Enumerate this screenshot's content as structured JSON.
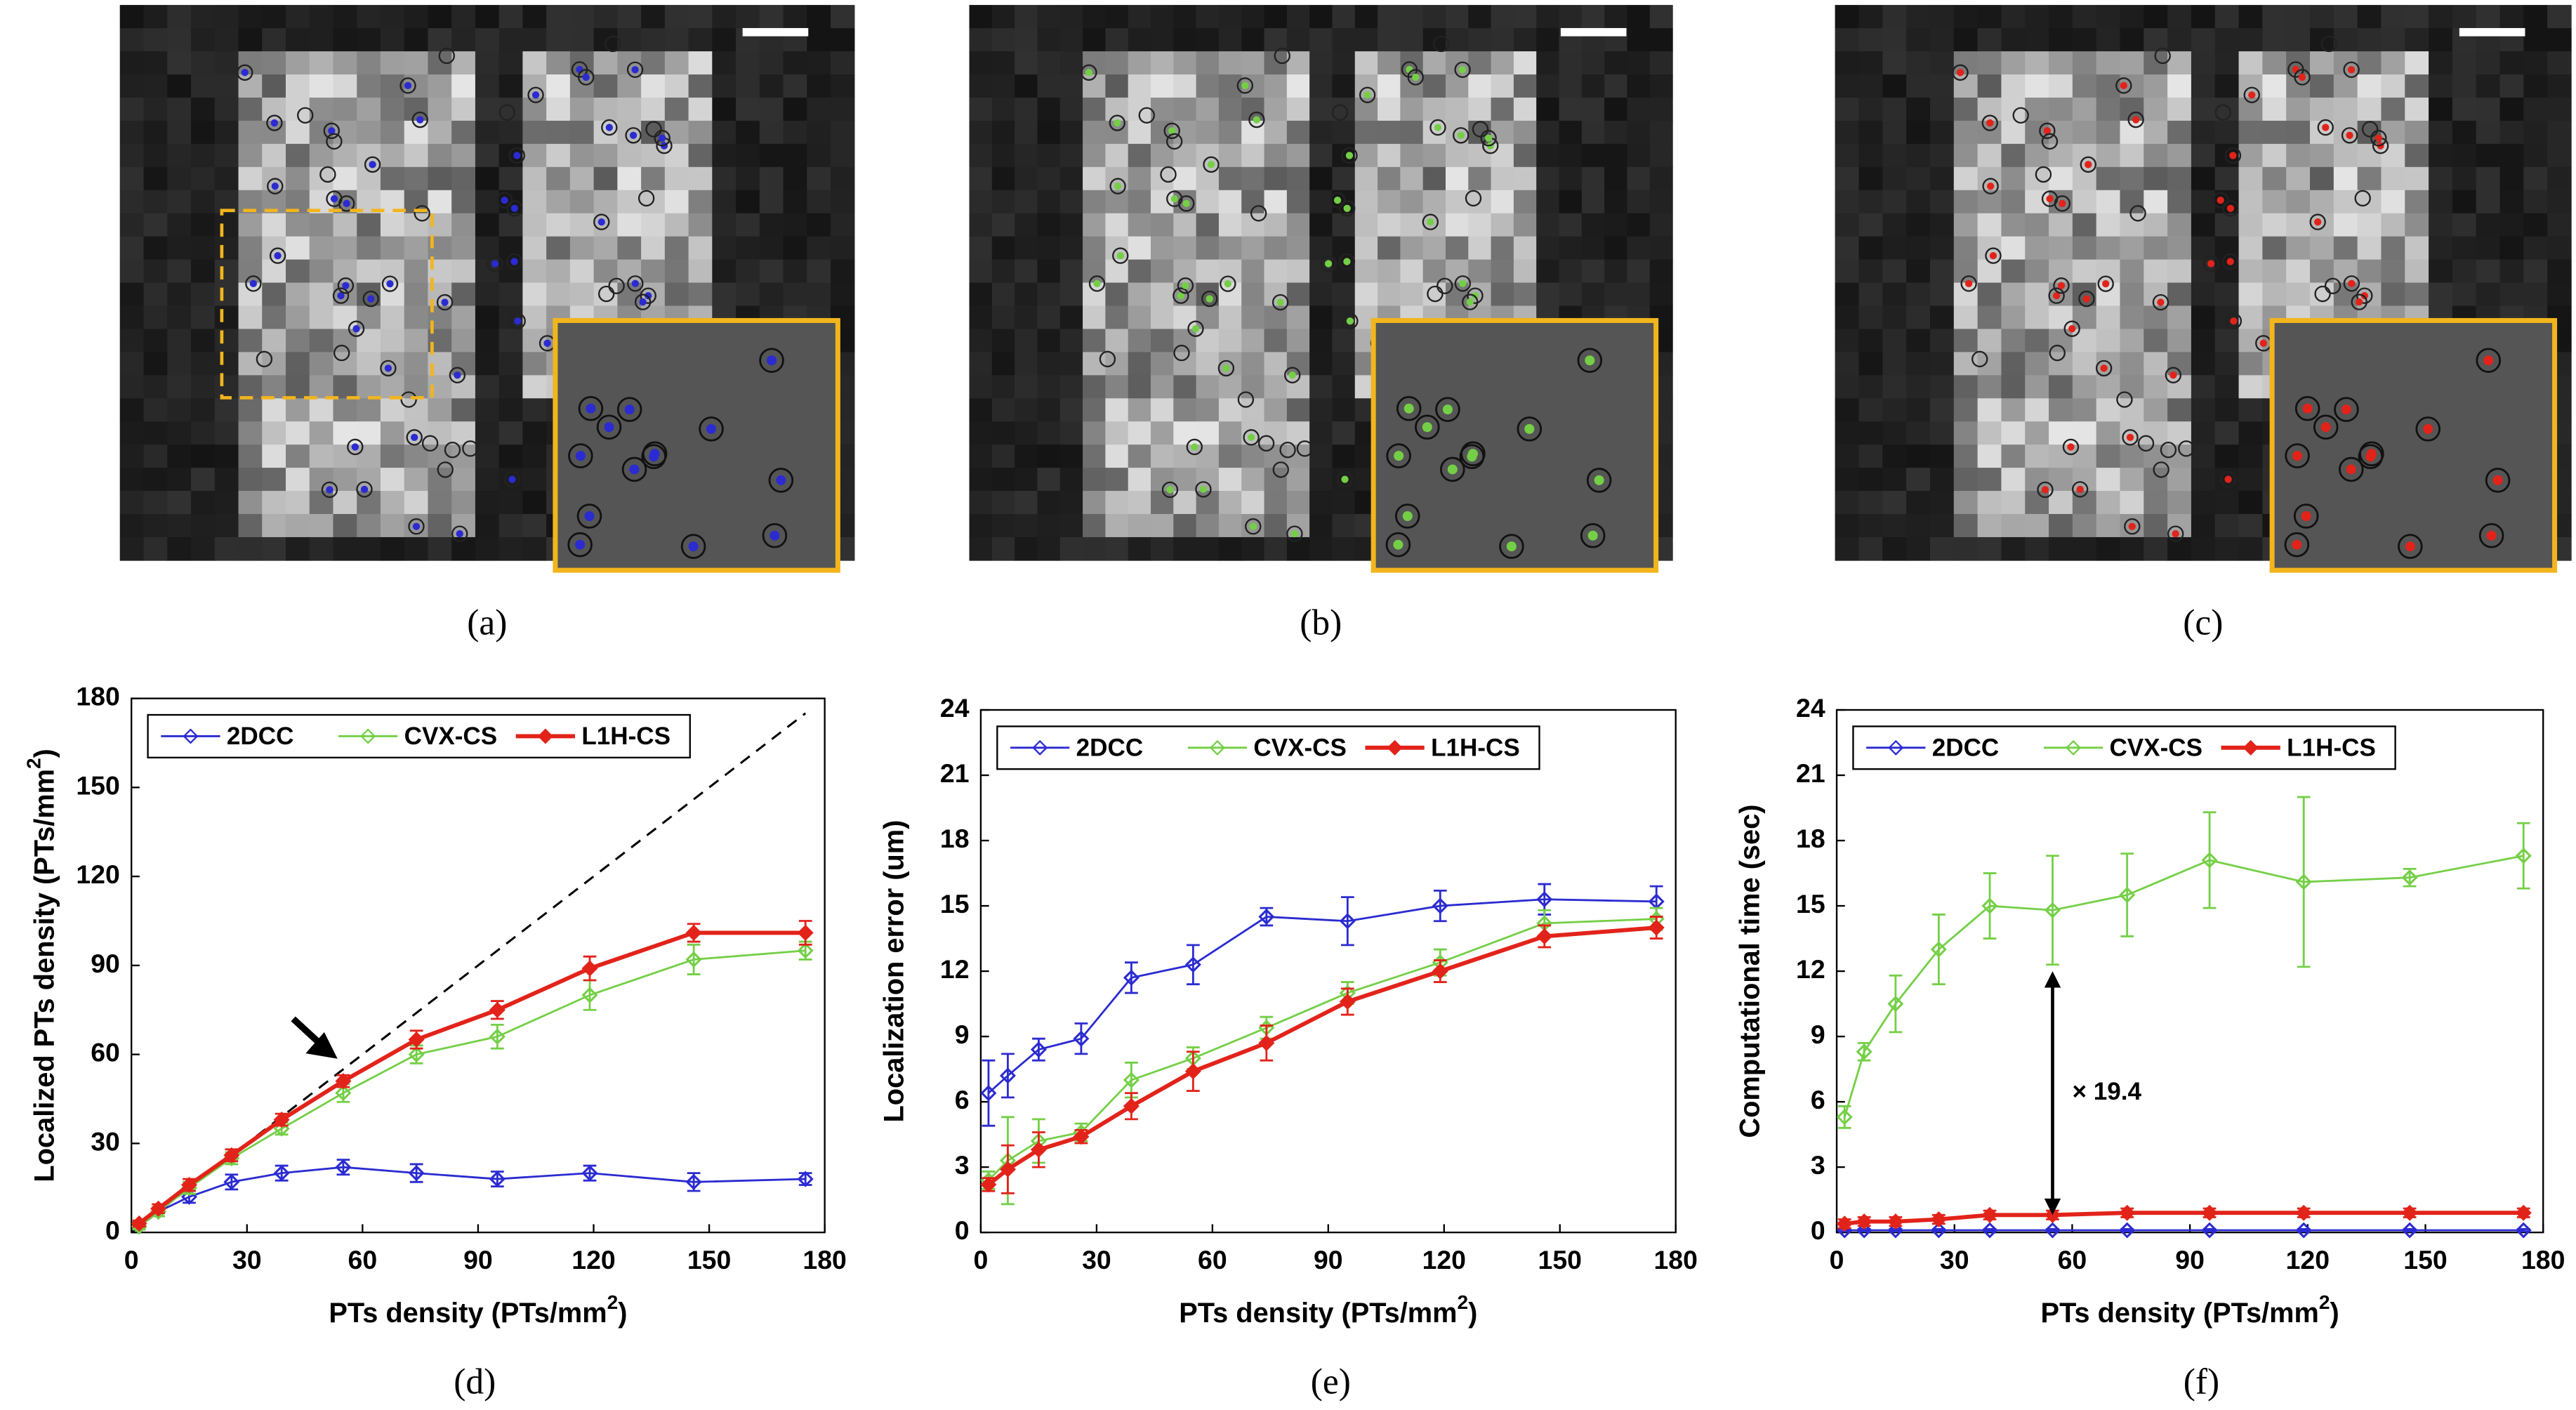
{
  "figure": {
    "panels": [
      "(a)",
      "(b)",
      "(c)"
    ]
  },
  "chart_data": [
    {
      "type": "line",
      "caption": "(d)",
      "xlabel": {
        "text": "PTs density (PTs/mm",
        "sup": "2",
        "suffix": ")"
      },
      "ylabel": {
        "text": "Localized PTs density (PTs/mm",
        "sup": "2",
        "suffix": ")"
      },
      "x": [
        2,
        7,
        15,
        26,
        39,
        55,
        74,
        95,
        119,
        146,
        175
      ],
      "xlim": [
        0,
        180
      ],
      "xticks": [
        0,
        30,
        60,
        90,
        120,
        150,
        180
      ],
      "ylim": [
        0,
        180
      ],
      "yticks": [
        0,
        30,
        60,
        90,
        120,
        150,
        180
      ],
      "legend": "upper left",
      "reference_line": {
        "x": [
          0,
          175
        ],
        "y": [
          0,
          175
        ]
      },
      "series": [
        {
          "name": "2DCC",
          "color": "#2b2bd1",
          "values": [
            2,
            7,
            12,
            17,
            20,
            22,
            20,
            18,
            20,
            17,
            18
          ],
          "errors": [
            1,
            1.5,
            2,
            2.5,
            2.5,
            2.5,
            3,
            2.5,
            2.5,
            3,
            2
          ]
        },
        {
          "name": "CVX-CS",
          "color": "#74cf46",
          "values": [
            2,
            7,
            15,
            25,
            35,
            47,
            60,
            66,
            80,
            92,
            95
          ],
          "errors": [
            1,
            1.5,
            2,
            2,
            2,
            3,
            3,
            4,
            5,
            5,
            3
          ]
        },
        {
          "name": "L1H-CS",
          "color": "#e2231a",
          "values": [
            3,
            8,
            16,
            26,
            38,
            51,
            65,
            75,
            89,
            101,
            101
          ],
          "errors": [
            1,
            1.5,
            2,
            2,
            2,
            2,
            3,
            3,
            4,
            3,
            4
          ]
        }
      ]
    },
    {
      "type": "line",
      "caption": "(e)",
      "xlabel": {
        "text": "PTs density (PTs/mm",
        "sup": "2",
        "suffix": ")"
      },
      "ylabel": {
        "text": "Localization error (um)"
      },
      "x": [
        2,
        7,
        15,
        26,
        39,
        55,
        74,
        95,
        119,
        146,
        175
      ],
      "xlim": [
        0,
        180
      ],
      "xticks": [
        0,
        30,
        60,
        90,
        120,
        150,
        180
      ],
      "ylim": [
        0,
        24
      ],
      "yticks": [
        0,
        3,
        6,
        9,
        12,
        15,
        18,
        21,
        24
      ],
      "legend": "upper left",
      "series": [
        {
          "name": "2DCC",
          "color": "#2b2bd1",
          "values": [
            6.4,
            7.2,
            8.4,
            8.9,
            11.7,
            12.3,
            14.5,
            14.3,
            15.0,
            15.3,
            15.2
          ],
          "errors": [
            1.5,
            1,
            0.5,
            0.7,
            0.7,
            0.9,
            0.4,
            1.1,
            0.7,
            0.7,
            0.7
          ]
        },
        {
          "name": "CVX-CS",
          "color": "#74cf46",
          "values": [
            2.4,
            3.3,
            4.2,
            4.6,
            7.0,
            8.0,
            9.4,
            11.0,
            12.4,
            14.2,
            14.4
          ],
          "errors": [
            0.4,
            2,
            1,
            0.4,
            0.8,
            0.5,
            0.5,
            0.5,
            0.6,
            0.6,
            0.5
          ]
        },
        {
          "name": "L1H-CS",
          "color": "#e2231a",
          "values": [
            2.2,
            2.9,
            3.8,
            4.4,
            5.8,
            7.4,
            8.7,
            10.6,
            12.0,
            13.6,
            14.0
          ],
          "errors": [
            0.3,
            1.1,
            0.8,
            0.3,
            0.6,
            0.9,
            0.8,
            0.6,
            0.5,
            0.5,
            0.5
          ]
        }
      ]
    },
    {
      "type": "line",
      "caption": "(f)",
      "xlabel": {
        "text": "PTs density (PTs/mm",
        "sup": "2",
        "suffix": ")"
      },
      "ylabel": {
        "text": "Computational time (sec)"
      },
      "x": [
        2,
        7,
        15,
        26,
        39,
        55,
        74,
        95,
        119,
        146,
        175
      ],
      "xlim": [
        0,
        180
      ],
      "xticks": [
        0,
        30,
        60,
        90,
        120,
        150,
        180
      ],
      "ylim": [
        0,
        24
      ],
      "yticks": [
        0,
        3,
        6,
        9,
        12,
        15,
        18,
        21,
        24
      ],
      "legend": "upper left",
      "annotation": {
        "text": "× 19.4",
        "x": 55,
        "y_from": 0.8,
        "y_to": 12
      },
      "series": [
        {
          "name": "2DCC",
          "color": "#2b2bd1",
          "values": [
            0.1,
            0.1,
            0.1,
            0.1,
            0.1,
            0.1,
            0.1,
            0.1,
            0.1,
            0.1,
            0.1
          ],
          "errors": [
            0.05,
            0.05,
            0.05,
            0.05,
            0.05,
            0.05,
            0.05,
            0.05,
            0.05,
            0.05,
            0.05
          ]
        },
        {
          "name": "CVX-CS",
          "color": "#74cf46",
          "values": [
            5.3,
            8.3,
            10.5,
            13,
            15,
            14.8,
            15.5,
            17.1,
            16.1,
            16.3,
            17.3
          ],
          "errors": [
            0.5,
            0.4,
            1.3,
            1.6,
            1.5,
            2.5,
            1.9,
            2.2,
            3.9,
            0.4,
            1.5
          ]
        },
        {
          "name": "L1H-CS",
          "color": "#e2231a",
          "values": [
            0.4,
            0.5,
            0.5,
            0.6,
            0.8,
            0.8,
            0.9,
            0.9,
            0.9,
            0.9,
            0.9
          ],
          "errors": [
            0.2,
            0.2,
            0.2,
            0.2,
            0.2,
            0.2,
            0.2,
            0.2,
            0.2,
            0.2,
            0.2
          ]
        }
      ]
    }
  ]
}
